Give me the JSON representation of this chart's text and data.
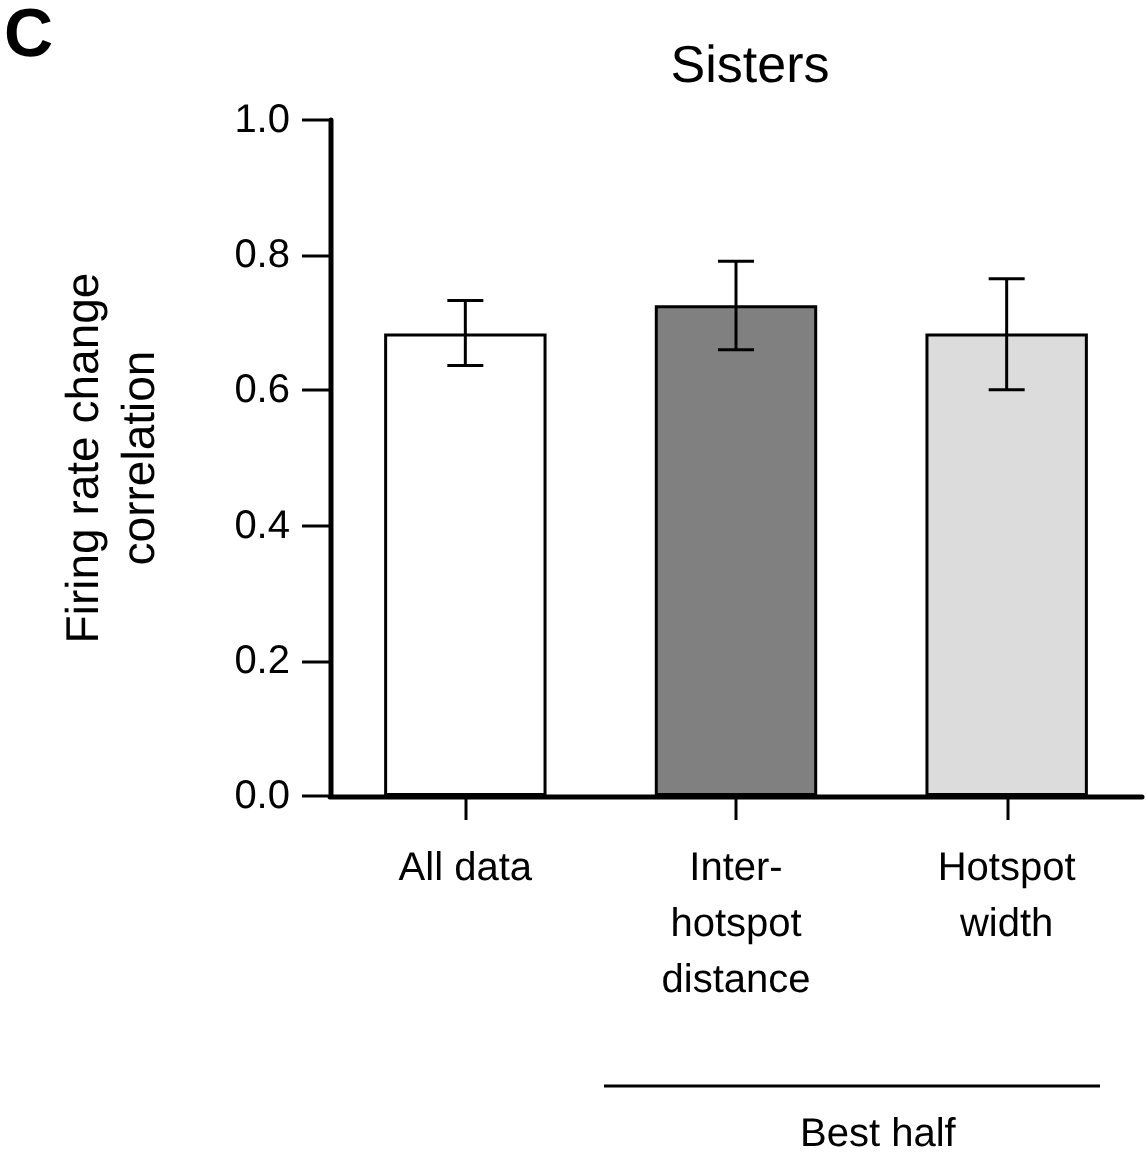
{
  "chart_data": {
    "type": "bar",
    "title": "Sisters",
    "ylabel": "Firing rate change\ncorrelation",
    "categories": [
      "All data",
      "Inter-\nhotspot\ndistance",
      "Hotspot\nwidth"
    ],
    "values": [
      0.684,
      0.726,
      0.684
    ],
    "colors": [
      "#ffffff",
      "#808080",
      "#dcdcdc"
    ],
    "errors": [
      [
        0.637,
        0.733
      ],
      [
        0.66,
        0.791
      ],
      [
        0.601,
        0.765
      ]
    ],
    "ylim": [
      0,
      1
    ],
    "yticks": [
      {
        "value": 0,
        "label": "0.0"
      },
      0.2,
      0.4,
      0.6,
      0.8,
      {
        "value": 1,
        "label": "1.0"
      }
    ],
    "grid": false,
    "annotations": [
      "C",
      "Best half"
    ]
  }
}
